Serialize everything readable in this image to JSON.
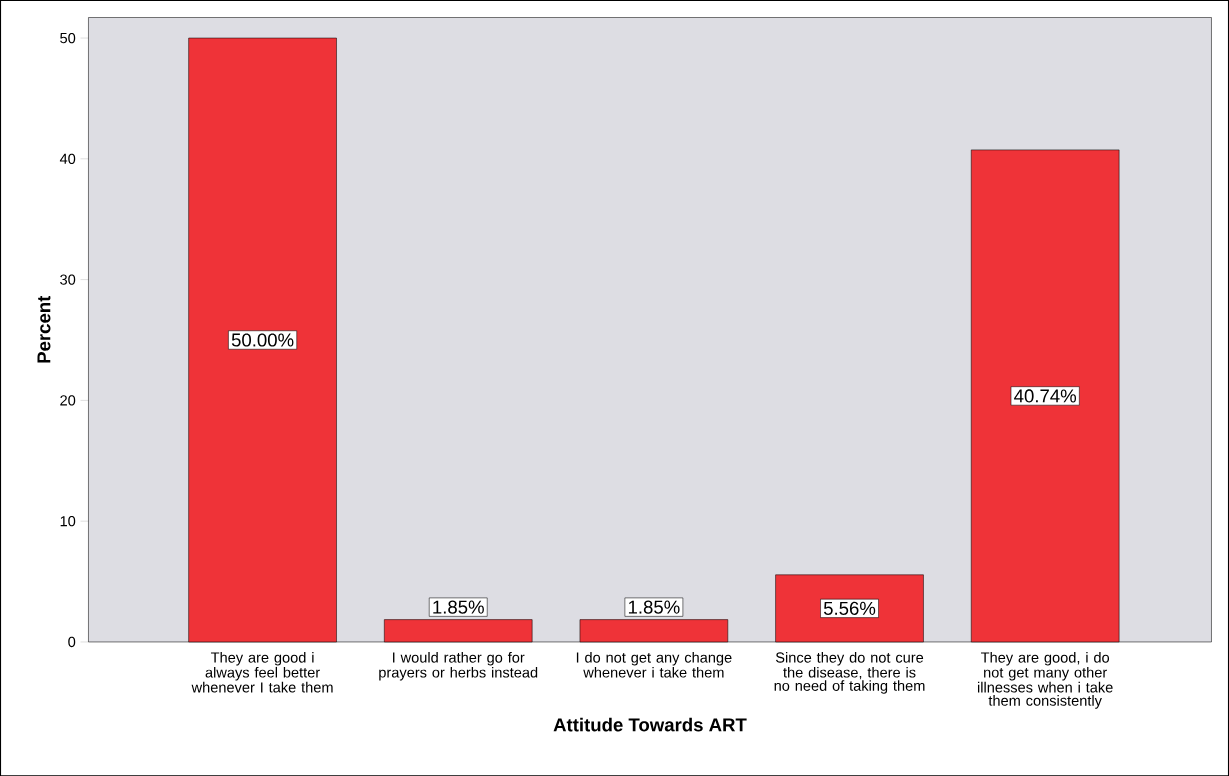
{
  "chart_data": {
    "type": "bar",
    "xlabel": "Attitude Towards ART",
    "ylabel": "Percent",
    "categories": [
      "They are good i always feel better whenever I take them",
      "I would rather go for prayers or herbs instead",
      "I do not get any change whenever i take them",
      "Since they do not cure the disease, there is no need of taking them",
      "They are good, i do not get many other illnesses when i take them consistently"
    ],
    "values": [
      50.0,
      1.85,
      1.85,
      5.56,
      40.74
    ],
    "value_labels": [
      "50.00%",
      "1.85%",
      "1.85%",
      "5.56%",
      "40.74%"
    ],
    "color": "#ef3338",
    "ylim": [
      0,
      51.7
    ],
    "yticks": [
      0,
      10,
      20,
      30,
      40,
      50
    ]
  }
}
